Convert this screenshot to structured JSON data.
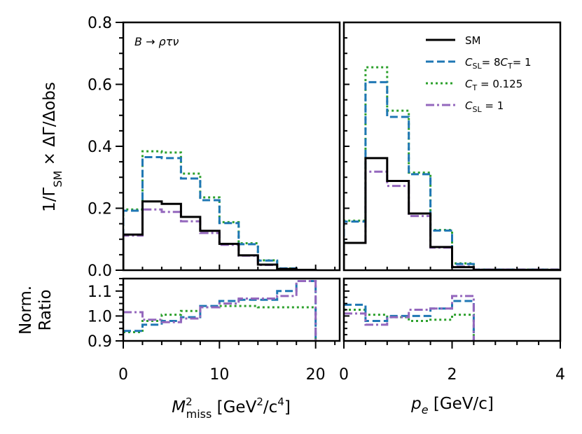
{
  "chart_data": {
    "type": "step-histogram",
    "annotation": "B → ρτν",
    "ylabel_main": "1/Γ_SM × ΔΓ/Δobs",
    "ylabel_ratio_line1": "Norm.",
    "ylabel_ratio_line2": "Ratio",
    "legend": [
      {
        "key": "sm",
        "label": "SM",
        "color": "#000000",
        "dash": "solid"
      },
      {
        "key": "csl8ct",
        "label": "C_SL= 8C_T= 1",
        "color": "#1f77b4",
        "dash": "dashed"
      },
      {
        "key": "ct",
        "label": "C_T = 0.125",
        "color": "#2ca02c",
        "dash": "dotted"
      },
      {
        "key": "csl",
        "label": "C_SL = 1",
        "color": "#9467bd",
        "dash": "dashdot"
      }
    ],
    "legend_position": "top-right",
    "panels": [
      {
        "key": "m2miss",
        "xlabel": "M²_miss [GeV²/c⁴]",
        "xlim": [
          0,
          22.5
        ],
        "xticks": [
          0,
          10,
          20
        ],
        "xtick_labels": [
          "0",
          "10",
          "20"
        ],
        "ylim": [
          0,
          0.8
        ],
        "yticks": [
          0,
          0.2,
          0.4,
          0.6,
          0.8
        ],
        "ytick_labels": [
          "0.0",
          "0.2",
          "0.4",
          "0.6",
          "0.8"
        ],
        "ratio_ylim": [
          0.9,
          1.15
        ],
        "ratio_yticks": [
          0.9,
          1.0,
          1.1
        ],
        "ratio_ytick_labels": [
          "0.9",
          "1.0",
          "1.1"
        ],
        "bin_edges": [
          0,
          2,
          4,
          6,
          8,
          10,
          12,
          14,
          16,
          18,
          20
        ],
        "series": {
          "sm": [
            0.115,
            0.222,
            0.214,
            0.172,
            0.127,
            0.085,
            0.048,
            0.018,
            0.004,
            0.001
          ],
          "csl8ct": [
            0.192,
            0.365,
            0.362,
            0.296,
            0.226,
            0.152,
            0.084,
            0.031,
            0.006,
            0.001
          ],
          "ct": [
            0.196,
            0.384,
            0.38,
            0.312,
            0.235,
            0.155,
            0.087,
            0.032,
            0.006,
            0.001
          ],
          "csl": [
            0.112,
            0.196,
            0.188,
            0.158,
            0.12,
            0.082,
            0.047,
            0.017,
            0.004,
            0.001
          ]
        },
        "ratio": {
          "csl8ct": [
            0.94,
            0.965,
            0.98,
            0.995,
            1.04,
            1.06,
            1.065,
            1.065,
            1.1,
            1.14
          ],
          "ct": [
            0.935,
            0.98,
            1.005,
            1.02,
            1.035,
            1.04,
            1.04,
            1.035,
            1.035,
            1.035
          ],
          "csl": [
            1.015,
            0.985,
            0.975,
            0.99,
            1.035,
            1.05,
            1.07,
            1.07,
            1.08,
            1.14
          ]
        },
        "ratio_drop_x": 20
      },
      {
        "key": "pe",
        "xlabel": "p_e [GeV/c]",
        "xlim": [
          0,
          4
        ],
        "xticks": [
          0,
          2,
          4
        ],
        "xtick_labels": [
          "0",
          "2",
          "4"
        ],
        "ylim": [
          0,
          0.8
        ],
        "yticks": [
          0,
          0.2,
          0.4,
          0.6,
          0.8
        ],
        "ratio_ylim": [
          0.9,
          1.15
        ],
        "ratio_yticks": [
          0.9,
          1.0,
          1.1
        ],
        "bin_edges": [
          0,
          0.4,
          0.8,
          1.2,
          1.6,
          2.0,
          2.4,
          2.8,
          3.2,
          3.6,
          4.0
        ],
        "series": {
          "sm": [
            0.088,
            0.362,
            0.288,
            0.183,
            0.075,
            0.01,
            0.001,
            0.001,
            0.001,
            0.001
          ],
          "csl8ct": [
            0.157,
            0.607,
            0.495,
            0.31,
            0.128,
            0.02,
            0.002,
            0.002,
            0.002,
            0.002
          ],
          "ct": [
            0.16,
            0.655,
            0.515,
            0.315,
            0.13,
            0.022,
            0.002,
            0.002,
            0.002,
            0.002
          ],
          "csl": [
            0.088,
            0.318,
            0.272,
            0.175,
            0.073,
            0.012,
            0.002,
            0.002,
            0.002,
            0.002
          ]
        },
        "ratio": {
          "csl8ct": [
            1.045,
            0.98,
            1.0,
            1.0,
            1.03,
            1.06
          ],
          "ct": [
            1.025,
            1.005,
            0.995,
            0.98,
            0.985,
            1.005
          ],
          "csl": [
            1.01,
            0.965,
            0.995,
            1.025,
            1.03,
            1.08
          ]
        },
        "ratio_drop_x": 2.4
      }
    ]
  }
}
